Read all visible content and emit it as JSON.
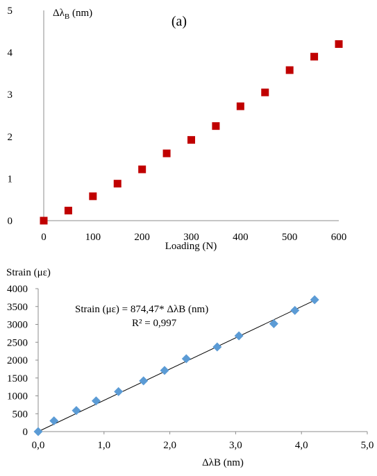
{
  "chart_data": [
    {
      "type": "scatter",
      "panel_label": "(a)",
      "title": "",
      "xlabel": "Loading (N)",
      "ylabel_main": "Δλ",
      "ylabel_sub": "B",
      "ylabel_unit": " (nm)",
      "xlim": [
        0,
        600
      ],
      "ylim": [
        0,
        5
      ],
      "x_ticks": [
        0,
        100,
        200,
        300,
        400,
        500,
        600
      ],
      "y_ticks": [
        0,
        1,
        2,
        3,
        4,
        5
      ],
      "marker": "square",
      "color": "#c00000",
      "grid": false,
      "series": [
        {
          "x": [
            0,
            50,
            100,
            150,
            200,
            250,
            300,
            350,
            400,
            450,
            500,
            550,
            600
          ],
          "y": [
            0.0,
            0.24,
            0.58,
            0.88,
            1.22,
            1.6,
            1.92,
            2.25,
            2.72,
            3.05,
            3.58,
            3.9,
            4.2
          ]
        }
      ]
    },
    {
      "type": "scatter",
      "title": "",
      "xlabel": "ΔλB (nm)",
      "ylabel": "Strain (με)",
      "xlim": [
        0,
        5
      ],
      "ylim": [
        0,
        4000
      ],
      "x_ticks": [
        "0,0",
        "1,0",
        "2,0",
        "3,0",
        "4,0",
        "5,0"
      ],
      "y_ticks": [
        0,
        500,
        1000,
        1500,
        2000,
        2500,
        3000,
        3500,
        4000
      ],
      "marker": "diamond",
      "color": "#5b9bd5",
      "grid": false,
      "trendline": {
        "slope": 874.47,
        "intercept": 0,
        "color": "#000000"
      },
      "annotations": [
        "Strain (με) = 874,47* ΔλB (nm)",
        "R² = 0,997"
      ],
      "series": [
        {
          "x": [
            0.0,
            0.24,
            0.58,
            0.88,
            1.22,
            1.6,
            1.92,
            2.25,
            2.72,
            3.05,
            3.58,
            3.9,
            4.2
          ],
          "y": [
            0,
            300,
            590,
            860,
            1120,
            1420,
            1710,
            2040,
            2370,
            2680,
            3020,
            3390,
            3690
          ]
        }
      ]
    }
  ]
}
